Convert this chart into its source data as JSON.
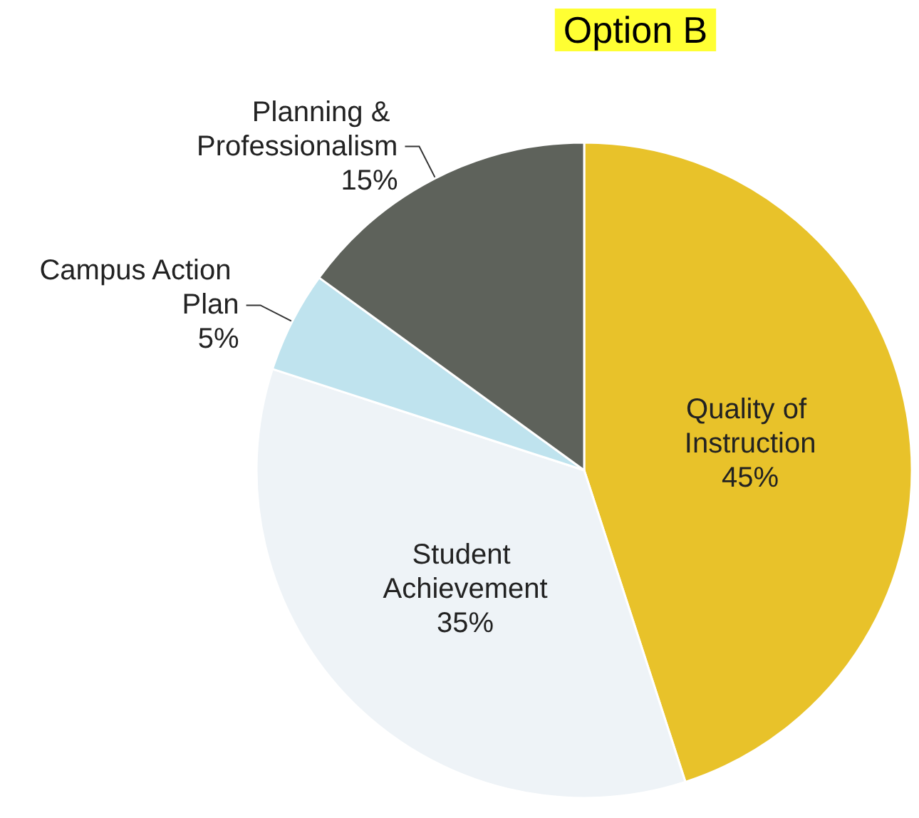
{
  "chart_data": {
    "type": "pie",
    "title": "Option B",
    "categories": [
      "Quality of Instruction",
      "Student Achievement",
      "Campus Action Plan",
      "Planning & Professionalism"
    ],
    "values": [
      45,
      35,
      5,
      15
    ],
    "value_labels": [
      "45%",
      "35%",
      "5%",
      "15%"
    ],
    "colors": [
      "#e8c22a",
      "#eef3f7",
      "#bfe3ee",
      "#5e625b"
    ]
  }
}
